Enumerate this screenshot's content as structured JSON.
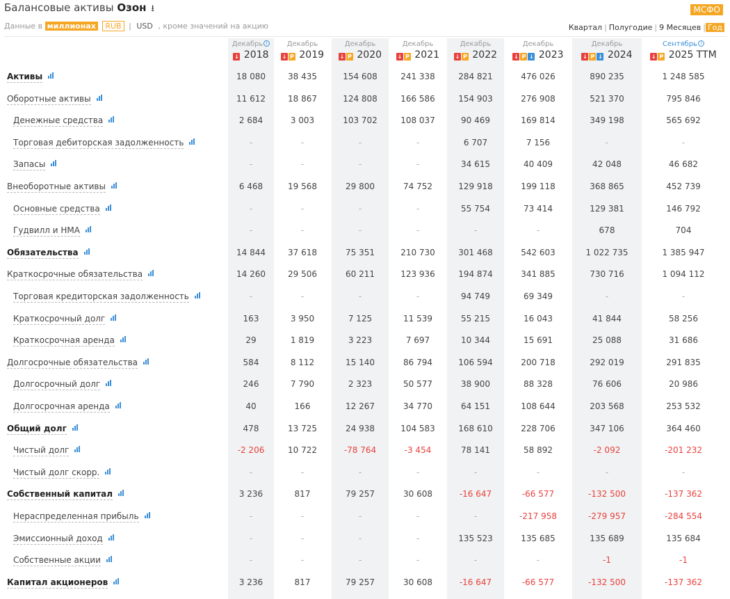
{
  "header": {
    "title_prefix": "Балансовые активы",
    "company": "Озон",
    "download_icon": "download-icon",
    "data_in": "Данные в",
    "unit": "миллионах",
    "currency_rub": "RUB",
    "sep": "|",
    "currency_usd": "USD",
    "except": ", кроме значений на акцию"
  },
  "standard": "МСФО",
  "periods": [
    "Квартал",
    "Полугодие",
    "9 Месяцев",
    "Год"
  ],
  "columns": [
    {
      "month": "Декабрь",
      "year": "2018",
      "info": true,
      "icons": [
        "pdf"
      ]
    },
    {
      "month": "Декабрь",
      "year": "2019",
      "icons": [
        "pdf",
        "ppt"
      ]
    },
    {
      "month": "Декабрь",
      "year": "2020",
      "icons": [
        "pdf",
        "ppt"
      ]
    },
    {
      "month": "Декабрь",
      "year": "2021",
      "icons": [
        "pdf",
        "ppt"
      ]
    },
    {
      "month": "Декабрь",
      "year": "2022",
      "icons": [
        "pdf",
        "ppt"
      ]
    },
    {
      "month": "Декабрь",
      "year": "2023",
      "icons": [
        "pdf",
        "ppt",
        "doc"
      ]
    },
    {
      "month": "Декабрь",
      "year": "2024",
      "icons": [
        "pdf",
        "ppt",
        "doc"
      ]
    },
    {
      "month": "Сентябрь",
      "year": "2025 TTM",
      "info": true,
      "blue": true,
      "icons": [
        "pdf",
        "ppt"
      ]
    }
  ],
  "rows": [
    {
      "label": "Активы",
      "bold": true,
      "values": [
        "18 080",
        "38 435",
        "154 608",
        "241 338",
        "284 821",
        "476 026",
        "890 235",
        "1 248 585"
      ]
    },
    {
      "label": "Оборотные активы",
      "values": [
        "11 612",
        "18 867",
        "124 808",
        "166 586",
        "154 903",
        "276 908",
        "521 370",
        "795 846"
      ]
    },
    {
      "label": "Денежные средства",
      "sub": true,
      "values": [
        "2 684",
        "3 003",
        "103 702",
        "108 037",
        "90 469",
        "169 814",
        "349 198",
        "565 692"
      ]
    },
    {
      "label": "Торговая дебиторская задолженность",
      "sub": true,
      "values": [
        "-",
        "-",
        "-",
        "-",
        "6 707",
        "7 156",
        "-",
        "-"
      ]
    },
    {
      "label": "Запасы",
      "sub": true,
      "values": [
        "-",
        "-",
        "-",
        "-",
        "34 615",
        "40 409",
        "42 048",
        "46 682"
      ]
    },
    {
      "label": "Внеоборотные активы",
      "values": [
        "6 468",
        "19 568",
        "29 800",
        "74 752",
        "129 918",
        "199 118",
        "368 865",
        "452 739"
      ]
    },
    {
      "label": "Основные средства",
      "sub": true,
      "values": [
        "-",
        "-",
        "-",
        "-",
        "55 754",
        "73 414",
        "129 381",
        "146 792"
      ]
    },
    {
      "label": "Гудвилл и НМА",
      "sub": true,
      "values": [
        "-",
        "-",
        "-",
        "-",
        "-",
        "-",
        "678",
        "704"
      ]
    },
    {
      "label": "Обязательства",
      "bold": true,
      "values": [
        "14 844",
        "37 618",
        "75 351",
        "210 730",
        "301 468",
        "542 603",
        "1 022 735",
        "1 385 947"
      ]
    },
    {
      "label": "Краткосрочные обязательства",
      "values": [
        "14 260",
        "29 506",
        "60 211",
        "123 936",
        "194 874",
        "341 885",
        "730 716",
        "1 094 112"
      ]
    },
    {
      "label": "Торговая кредиторская задолженность",
      "sub": true,
      "values": [
        "-",
        "-",
        "-",
        "-",
        "94 749",
        "69 349",
        "-",
        "-"
      ]
    },
    {
      "label": "Краткосрочный долг",
      "sub": true,
      "values": [
        "163",
        "3 950",
        "7 125",
        "11 539",
        "55 215",
        "16 043",
        "41 844",
        "58 256"
      ]
    },
    {
      "label": "Краткосрочная аренда",
      "sub": true,
      "values": [
        "29",
        "1 819",
        "3 223",
        "7 697",
        "10 344",
        "15 691",
        "25 088",
        "31 686"
      ]
    },
    {
      "label": "Долгосрочные обязательства",
      "values": [
        "584",
        "8 112",
        "15 140",
        "86 794",
        "106 594",
        "200 718",
        "292 019",
        "291 835"
      ]
    },
    {
      "label": "Долгосрочный долг",
      "sub": true,
      "values": [
        "246",
        "7 790",
        "2 323",
        "50 577",
        "38 900",
        "88 328",
        "76 606",
        "20 986"
      ]
    },
    {
      "label": "Долгосрочная аренда",
      "sub": true,
      "values": [
        "40",
        "166",
        "12 267",
        "34 770",
        "64 151",
        "108 644",
        "203 568",
        "253 532"
      ]
    },
    {
      "label": "Общий долг",
      "bold": true,
      "values": [
        "478",
        "13 725",
        "24 938",
        "104 583",
        "168 610",
        "228 706",
        "347 106",
        "364 460"
      ]
    },
    {
      "label": "Чистый долг",
      "sub": true,
      "values": [
        "-2 206",
        "10 722",
        "-78 764",
        "-3 454",
        "78 141",
        "58 892",
        "-2 092",
        "-201 232"
      ]
    },
    {
      "label": "Чистый долг скорр.",
      "sub": true,
      "values": [
        "-",
        "-",
        "-",
        "-",
        "-",
        "-",
        "-",
        "-"
      ]
    },
    {
      "label": "Собственный капитал",
      "bold": true,
      "values": [
        "3 236",
        "817",
        "79 257",
        "30 608",
        "-16 647",
        "-66 577",
        "-132 500",
        "-137 362"
      ]
    },
    {
      "label": "Нераспределенная прибыль",
      "sub": true,
      "values": [
        "-",
        "-",
        "-",
        "-",
        "-",
        "-217 958",
        "-279 957",
        "-284 554"
      ]
    },
    {
      "label": "Эмиссионный доход",
      "sub": true,
      "values": [
        "-",
        "-",
        "-",
        "-",
        "135 523",
        "135 685",
        "135 689",
        "135 684"
      ]
    },
    {
      "label": "Собственные акции",
      "sub": true,
      "values": [
        "-",
        "-",
        "-",
        "-",
        "-",
        "-",
        "-1",
        "-1"
      ]
    },
    {
      "label": "Капитал акционеров",
      "bold": true,
      "values": [
        "3 236",
        "817",
        "79 257",
        "30 608",
        "-16 647",
        "-66 577",
        "-132 500",
        "-137 362"
      ]
    }
  ],
  "colors": {
    "accent": "#f5a623",
    "negative": "#e8413d",
    "link": "#3a8fd8",
    "shade": "#f1f2f3"
  }
}
